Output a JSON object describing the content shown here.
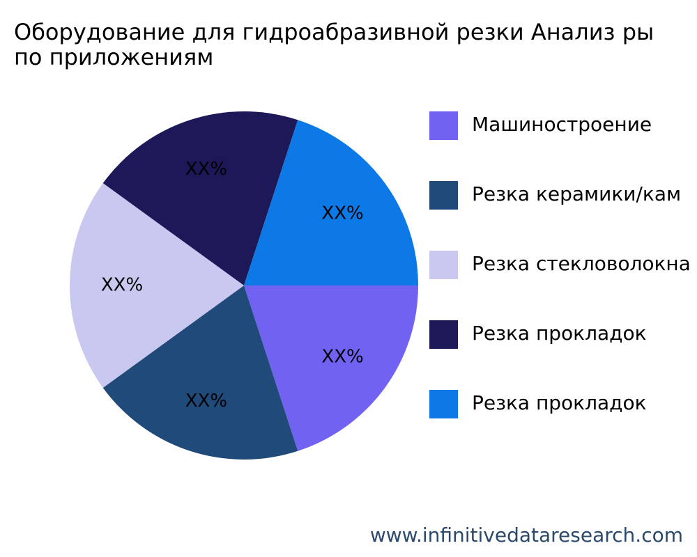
{
  "chart_data": {
    "type": "pie",
    "title": "Оборудование для гидроабразивной резки Анализ ры\nпо приложениям",
    "categories": [
      "Машиностроение",
      "Резка керамики/кам",
      "Резка стекловолокна",
      "Резка прокладок",
      "Резка прокладок"
    ],
    "values": [
      20,
      20,
      20,
      20,
      20
    ],
    "value_labels": [
      "XX%",
      "XX%",
      "XX%",
      "XX%",
      "XX%"
    ],
    "colors": [
      "#7162f2",
      "#1f4a7a",
      "#c9c8f0",
      "#1d1858",
      "#0c79e6"
    ],
    "legend": "right"
  },
  "footer": "www.infinitivedataresearch.com"
}
